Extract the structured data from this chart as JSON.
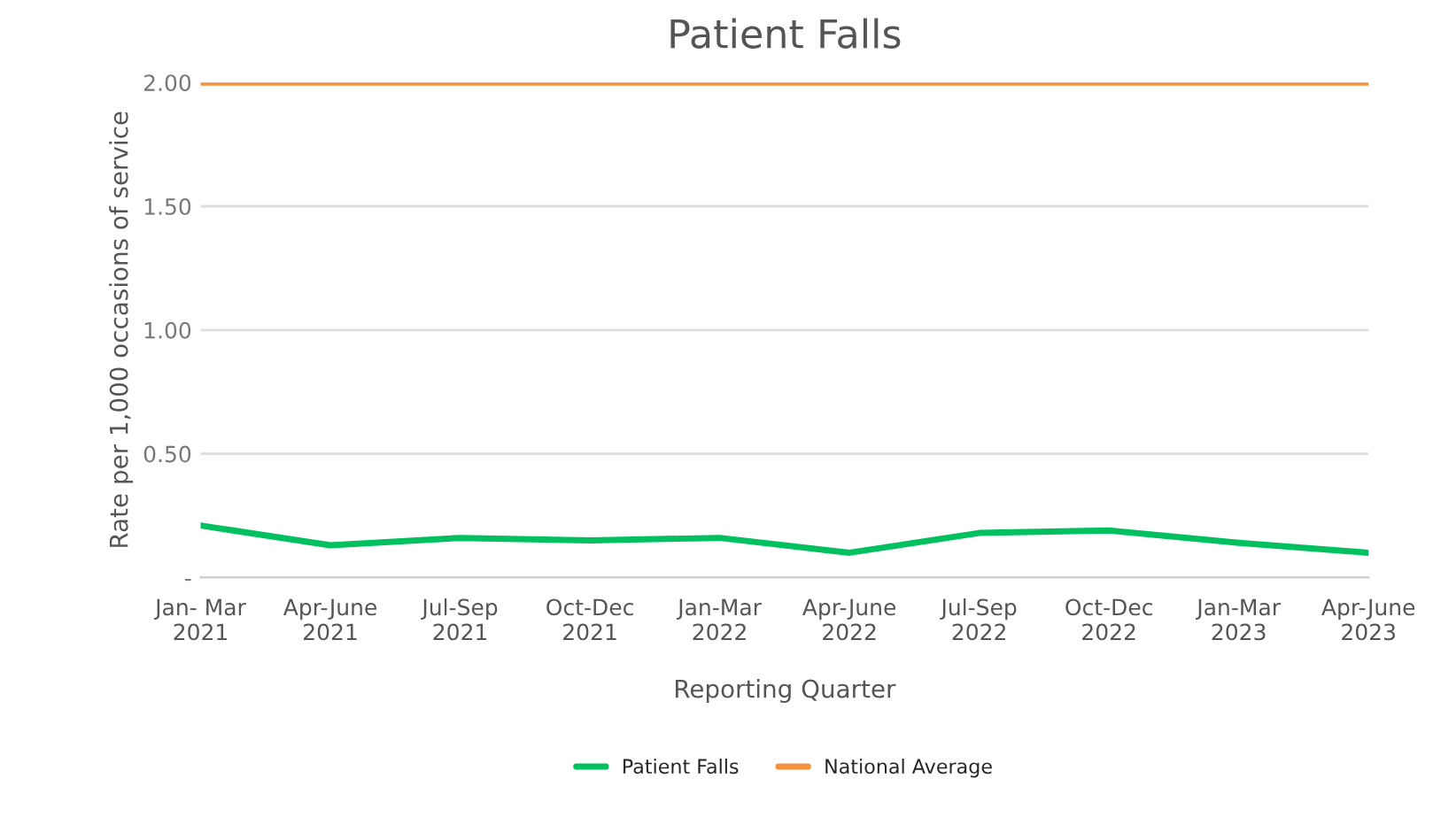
{
  "chart_data": {
    "type": "line",
    "title": "Patient Falls",
    "xlabel": "Reporting Quarter",
    "ylabel": "Rate per 1,000 occasions of service",
    "categories": [
      "Jan- Mar\n2021",
      "Apr-June\n2021",
      "Jul-Sep\n2021",
      "Oct-Dec\n2021",
      "Jan-Mar\n2022",
      "Apr-June\n2022",
      "Jul-Sep\n2022",
      "Oct-Dec\n2022",
      "Jan-Mar\n2023",
      "Apr-June\n2023"
    ],
    "series": [
      {
        "name": "Patient Falls",
        "color": "#00c060",
        "values": [
          0.21,
          0.13,
          0.16,
          0.15,
          0.16,
          0.1,
          0.18,
          0.19,
          0.14,
          0.1
        ]
      },
      {
        "name": "National Average",
        "color": "#f5923e",
        "values": [
          2.0,
          2.0,
          2.0,
          2.0,
          2.0,
          2.0,
          2.0,
          2.0,
          2.0,
          2.0
        ]
      }
    ],
    "ylim": [
      0,
      2.0
    ],
    "yticks": [
      {
        "value": 0,
        "label": "-"
      },
      {
        "value": 0.5,
        "label": "0.50"
      },
      {
        "value": 1.0,
        "label": "1.00"
      },
      {
        "value": 1.5,
        "label": "1.50"
      },
      {
        "value": 2.0,
        "label": "2.00"
      }
    ],
    "grid": "y",
    "legend": "bottom",
    "marker": "none",
    "line_style": "solid"
  }
}
